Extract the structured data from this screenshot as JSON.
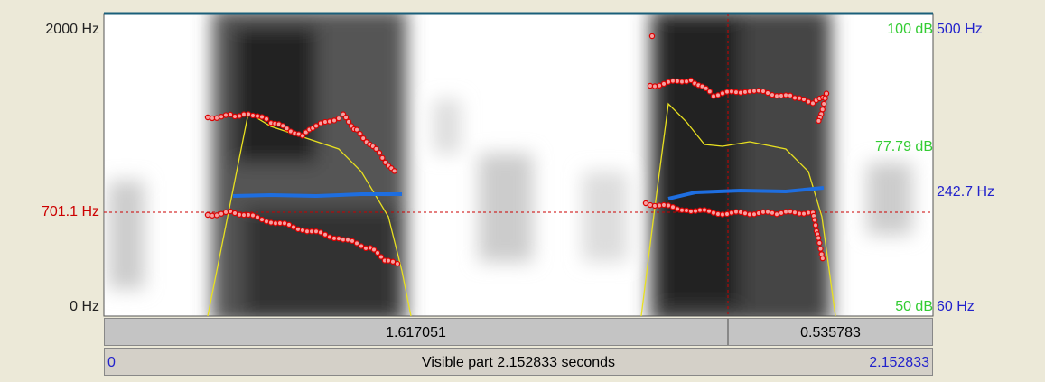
{
  "left_axis": {
    "top": "2000 Hz",
    "cursor": "701.1 Hz",
    "bottom": "0 Hz"
  },
  "right_db": {
    "top": "100 dB",
    "middle": "77.79 dB",
    "bottom": "50 dB"
  },
  "right_hz": {
    "top": "500 Hz",
    "middle": "242.7 Hz",
    "bottom": "60 Hz"
  },
  "selection": {
    "before": "1.617051",
    "after": "0.535783"
  },
  "visible": {
    "start": "0",
    "label": "Visible part 2.152833 seconds",
    "end": "2.152833"
  }
}
